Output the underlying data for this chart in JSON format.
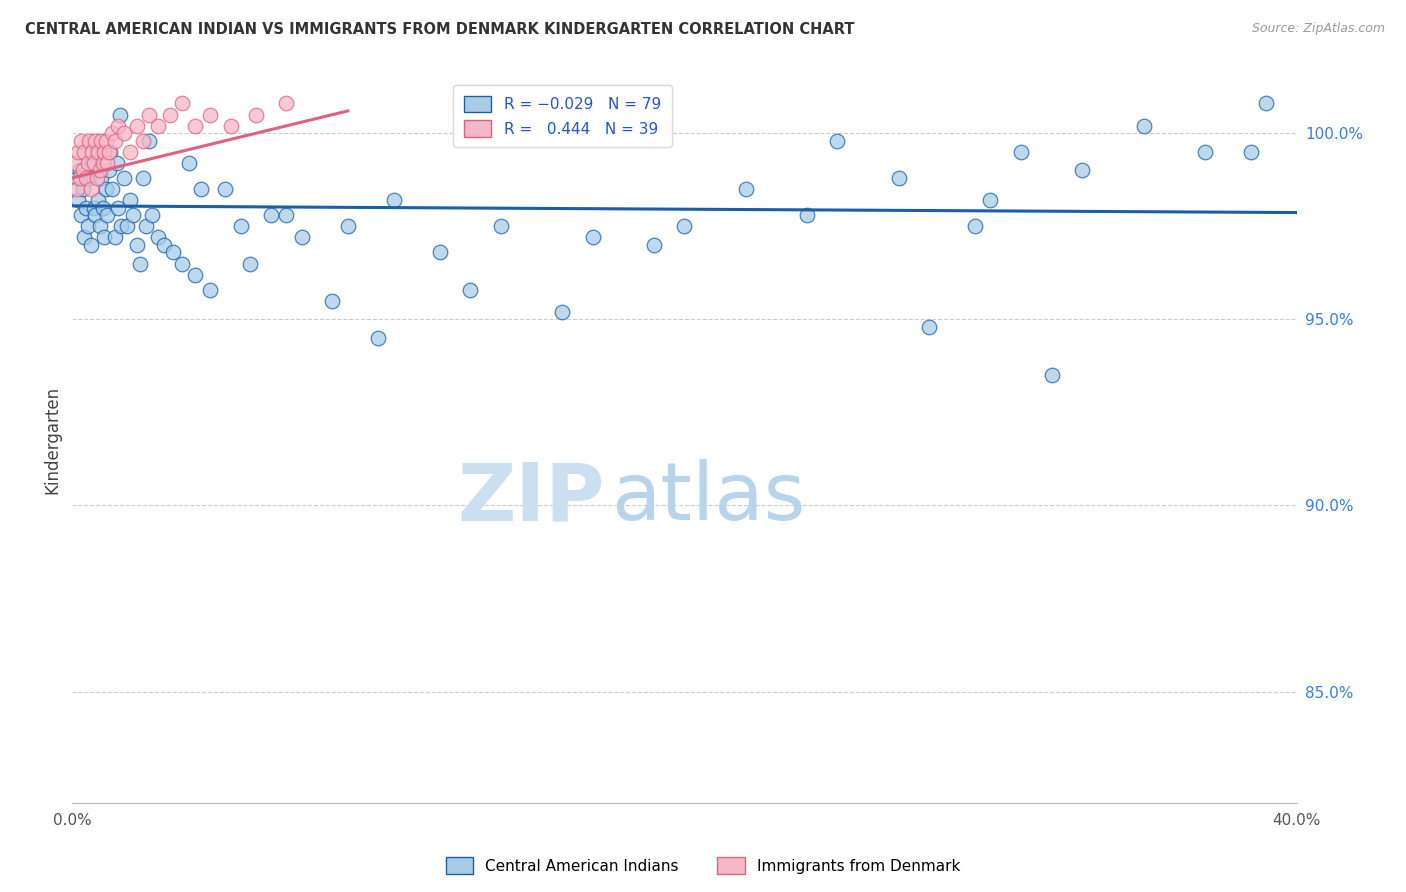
{
  "title": "CENTRAL AMERICAN INDIAN VS IMMIGRANTS FROM DENMARK KINDERGARTEN CORRELATION CHART",
  "source": "Source: ZipAtlas.com",
  "ylabel": "Kindergarten",
  "xlim": [
    0.0,
    40.0
  ],
  "ylim": [
    82.0,
    101.5
  ],
  "yticks": [
    85.0,
    90.0,
    95.0,
    100.0
  ],
  "ytick_labels": [
    "85.0%",
    "90.0%",
    "95.0%",
    "100.0%"
  ],
  "series1_color": "#a8cce8",
  "series2_color": "#f5b8c8",
  "trendline1_color": "#1a5fa8",
  "trendline2_color": "#e06080",
  "blue_scatter_x": [
    0.15,
    0.2,
    0.25,
    0.3,
    0.35,
    0.4,
    0.45,
    0.5,
    0.55,
    0.6,
    0.65,
    0.7,
    0.75,
    0.8,
    0.85,
    0.9,
    0.95,
    1.0,
    1.05,
    1.1,
    1.15,
    1.2,
    1.3,
    1.4,
    1.5,
    1.6,
    1.7,
    1.8,
    1.9,
    2.0,
    2.1,
    2.2,
    2.4,
    2.6,
    2.8,
    3.0,
    3.3,
    3.6,
    4.0,
    4.5,
    5.0,
    5.5,
    6.5,
    7.5,
    9.0,
    10.5,
    12.0,
    14.0,
    17.0,
    19.0,
    22.0,
    25.0,
    27.0,
    29.5,
    30.0,
    31.0,
    33.0,
    35.0,
    37.0,
    39.0,
    1.25,
    1.45,
    1.55,
    2.3,
    2.5,
    3.8,
    4.2,
    5.8,
    7.0,
    8.5,
    10.0,
    13.0,
    16.0,
    20.0,
    24.0,
    28.0,
    32.0,
    38.5
  ],
  "blue_scatter_y": [
    98.8,
    98.2,
    99.0,
    97.8,
    98.5,
    97.2,
    98.0,
    97.5,
    98.8,
    97.0,
    99.2,
    98.0,
    97.8,
    99.5,
    98.2,
    97.5,
    98.8,
    98.0,
    97.2,
    98.5,
    97.8,
    99.0,
    98.5,
    97.2,
    98.0,
    97.5,
    98.8,
    97.5,
    98.2,
    97.8,
    97.0,
    96.5,
    97.5,
    97.8,
    97.2,
    97.0,
    96.8,
    96.5,
    96.2,
    95.8,
    98.5,
    97.5,
    97.8,
    97.2,
    97.5,
    98.2,
    96.8,
    97.5,
    97.2,
    97.0,
    98.5,
    99.8,
    98.8,
    97.5,
    98.2,
    99.5,
    99.0,
    100.2,
    99.5,
    100.8,
    99.5,
    99.2,
    100.5,
    98.8,
    99.8,
    99.2,
    98.5,
    96.5,
    97.8,
    95.5,
    94.5,
    95.8,
    95.2,
    97.5,
    97.8,
    94.8,
    93.5,
    99.5
  ],
  "pink_scatter_x": [
    0.1,
    0.15,
    0.2,
    0.25,
    0.3,
    0.35,
    0.4,
    0.45,
    0.5,
    0.55,
    0.6,
    0.65,
    0.7,
    0.75,
    0.8,
    0.85,
    0.9,
    0.95,
    1.0,
    1.05,
    1.1,
    1.15,
    1.2,
    1.3,
    1.4,
    1.5,
    1.7,
    1.9,
    2.1,
    2.3,
    2.5,
    2.8,
    3.2,
    3.6,
    4.0,
    4.5,
    5.2,
    6.0,
    7.0
  ],
  "pink_scatter_y": [
    99.2,
    98.5,
    99.5,
    98.8,
    99.8,
    99.0,
    99.5,
    98.8,
    99.2,
    99.8,
    98.5,
    99.5,
    99.2,
    99.8,
    98.8,
    99.5,
    99.0,
    99.8,
    99.2,
    99.5,
    99.8,
    99.2,
    99.5,
    100.0,
    99.8,
    100.2,
    100.0,
    99.5,
    100.2,
    99.8,
    100.5,
    100.2,
    100.5,
    100.8,
    100.2,
    100.5,
    100.2,
    100.5,
    100.8
  ],
  "blue_trend_x": [
    0.0,
    40.0
  ],
  "blue_trend_y": [
    98.05,
    97.87
  ],
  "pink_trend_x": [
    0.0,
    9.0
  ],
  "pink_trend_y": [
    98.8,
    100.6
  ]
}
